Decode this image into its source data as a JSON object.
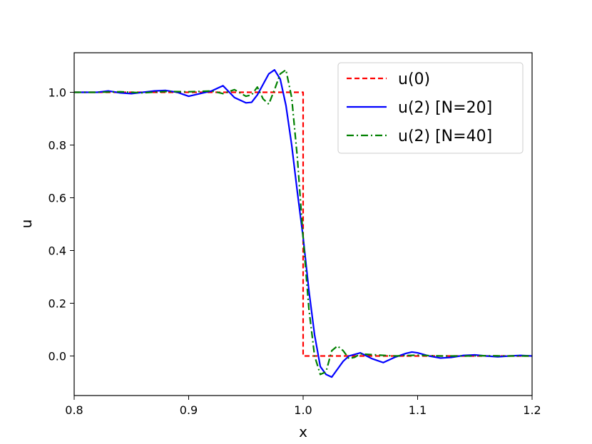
{
  "chart_data": {
    "type": "line",
    "title": "",
    "xlabel": "x",
    "ylabel": "u",
    "xlim": [
      0.8,
      1.2
    ],
    "ylim": [
      -0.15,
      1.15
    ],
    "xticks": [
      "0.8",
      "0.9",
      "1.0",
      "1.1",
      "1.2"
    ],
    "yticks": [
      "0.0",
      "0.2",
      "0.4",
      "0.6",
      "0.8",
      "1.0"
    ],
    "grid": false,
    "legend_position": "top-right",
    "series": [
      {
        "name": "u(0)",
        "color": "#ff0000",
        "style": "dashed",
        "x": [
          0.8,
          1.0,
          1.0,
          1.2
        ],
        "y": [
          1.0,
          1.0,
          0.0,
          0.0
        ]
      },
      {
        "name": "u(2) [N=20]",
        "color": "#0000ff",
        "style": "solid",
        "x": [
          0.8,
          0.81,
          0.82,
          0.83,
          0.84,
          0.85,
          0.86,
          0.87,
          0.88,
          0.89,
          0.9,
          0.905,
          0.91,
          0.92,
          0.93,
          0.94,
          0.95,
          0.955,
          0.96,
          0.97,
          0.975,
          0.98,
          0.985,
          0.99,
          0.995,
          1.0,
          1.005,
          1.01,
          1.015,
          1.02,
          1.025,
          1.03,
          1.035,
          1.04,
          1.05,
          1.06,
          1.07,
          1.08,
          1.09,
          1.095,
          1.1,
          1.11,
          1.12,
          1.13,
          1.14,
          1.15,
          1.16,
          1.17,
          1.18,
          1.19,
          1.2
        ],
        "y": [
          1.0,
          1.0,
          1.0,
          1.005,
          0.998,
          0.995,
          1.0,
          1.005,
          1.007,
          1.0,
          0.985,
          0.99,
          0.995,
          1.005,
          1.025,
          0.98,
          0.96,
          0.962,
          0.99,
          1.07,
          1.085,
          1.05,
          0.95,
          0.8,
          0.62,
          0.45,
          0.25,
          0.08,
          -0.04,
          -0.07,
          -0.08,
          -0.05,
          -0.02,
          0.0,
          0.012,
          -0.01,
          -0.025,
          -0.005,
          0.01,
          0.015,
          0.012,
          0.0,
          -0.008,
          -0.005,
          0.002,
          0.004,
          0.0,
          -0.003,
          0.0,
          0.002,
          0.0
        ]
      },
      {
        "name": "u(2) [N=40]",
        "color": "#008000",
        "style": "dashdot",
        "x": [
          0.8,
          0.82,
          0.84,
          0.86,
          0.88,
          0.9,
          0.92,
          0.93,
          0.94,
          0.95,
          0.955,
          0.96,
          0.965,
          0.97,
          0.975,
          0.98,
          0.985,
          0.99,
          0.995,
          1.0,
          1.005,
          1.01,
          1.015,
          1.02,
          1.025,
          1.03,
          1.035,
          1.04,
          1.045,
          1.05,
          1.06,
          1.08,
          1.1,
          1.12,
          1.14,
          1.16,
          1.18,
          1.2
        ],
        "y": [
          1.0,
          1.0,
          1.002,
          0.998,
          1.003,
          1.002,
          1.005,
          0.995,
          1.01,
          0.985,
          0.99,
          1.02,
          0.975,
          0.955,
          1.01,
          1.07,
          1.085,
          0.98,
          0.75,
          0.45,
          0.18,
          0.0,
          -0.07,
          -0.06,
          0.02,
          0.038,
          0.02,
          -0.01,
          -0.005,
          0.008,
          0.005,
          0.0,
          0.003,
          0.0,
          0.0,
          0.001,
          0.0,
          0.0
        ]
      }
    ]
  }
}
